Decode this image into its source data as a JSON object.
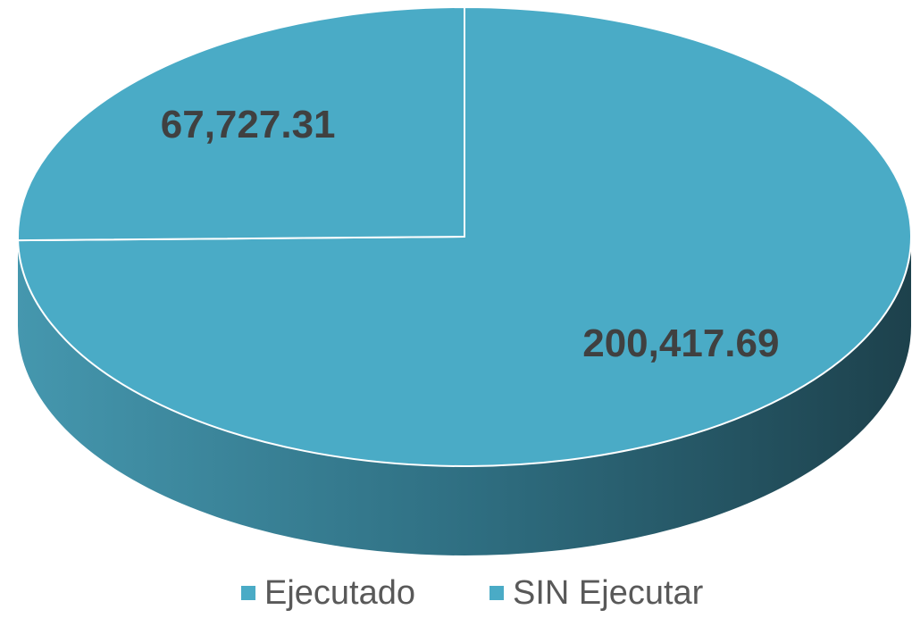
{
  "chart_data": {
    "type": "pie",
    "categories": [
      "Ejecutado",
      "SIN Ejecutar"
    ],
    "values": [
      200417.69,
      67727.31
    ],
    "value_labels": [
      "200,417.69",
      "67,727.31"
    ],
    "colors": [
      "#4aabc6",
      "#4aabc6"
    ],
    "legend": "bottom"
  }
}
